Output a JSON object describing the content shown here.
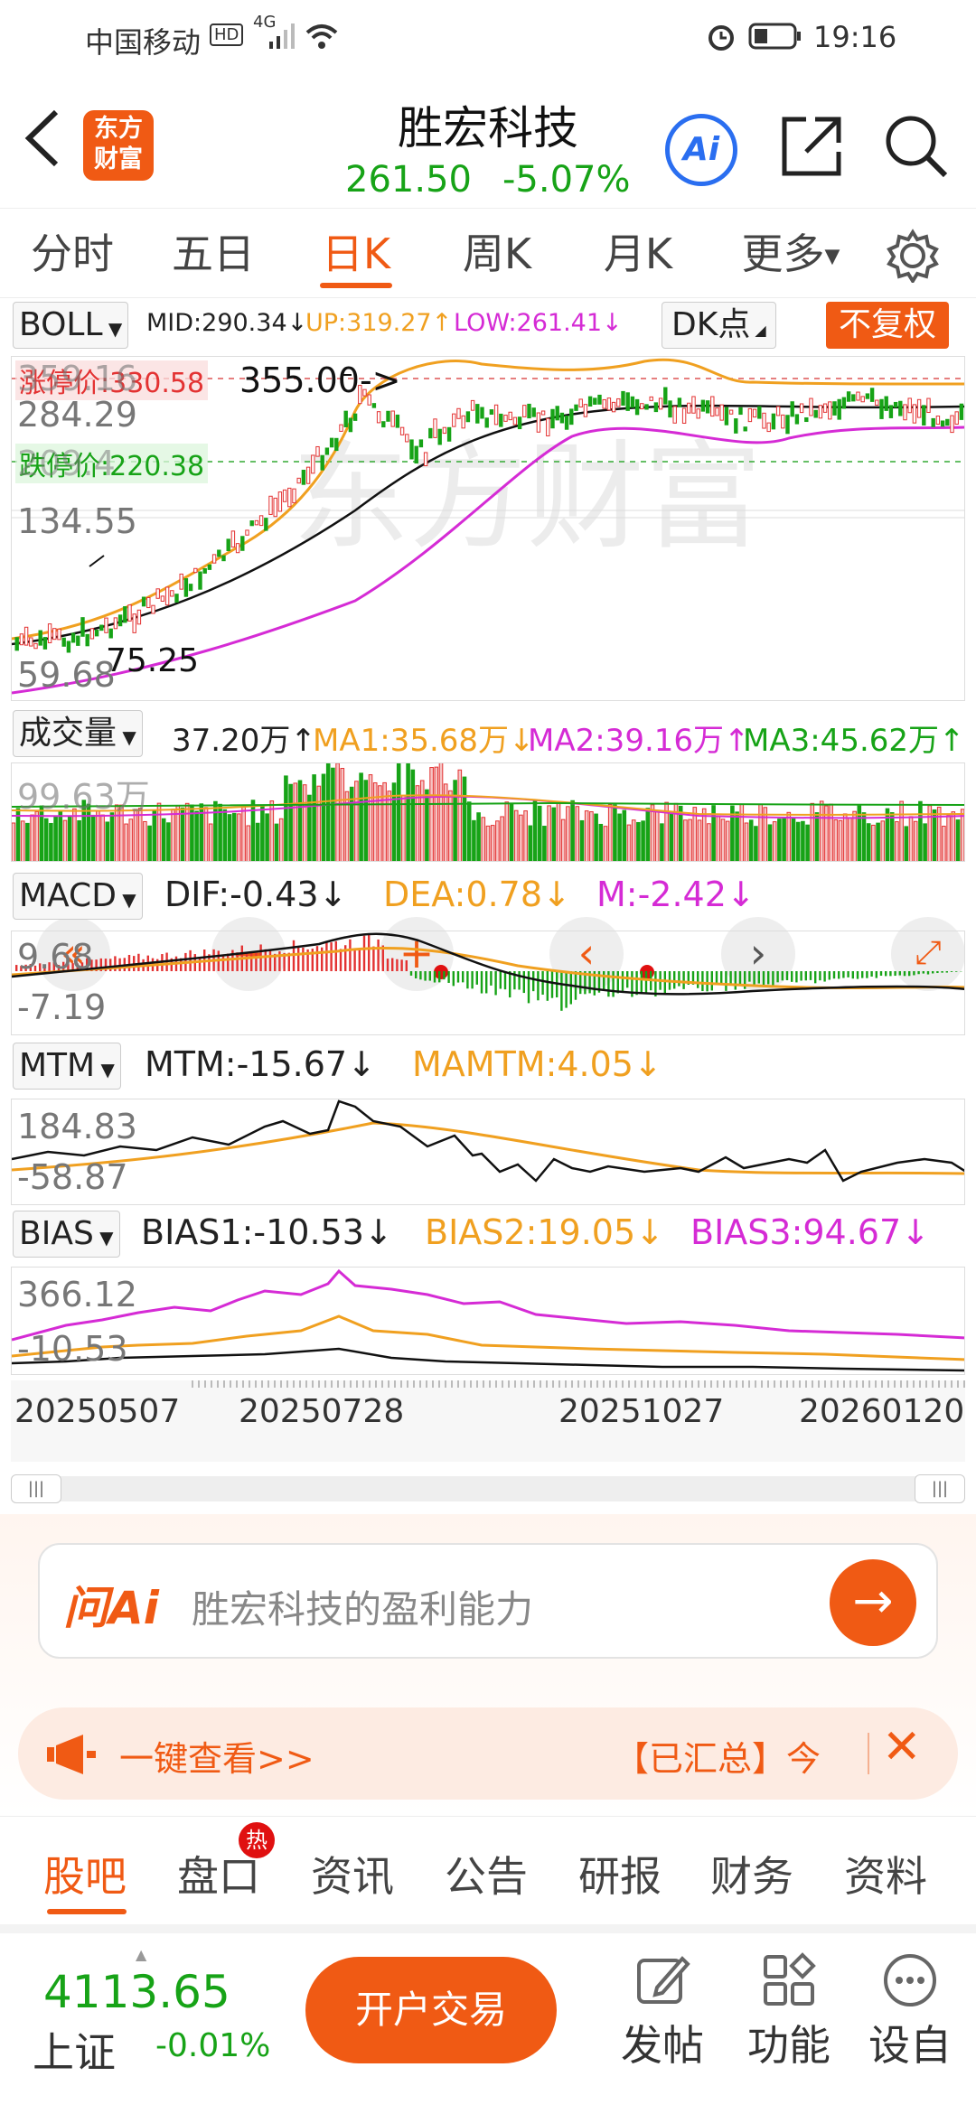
{
  "status_bar": {
    "carrier": "中国移动",
    "network": "4G",
    "time": "19:16"
  },
  "header": {
    "logo_text": "东方财富",
    "title": "胜宏科技",
    "price": "261.50",
    "change_pct": "-5.07%",
    "ai_label": "Ai"
  },
  "period_tabs": [
    {
      "label": "分时"
    },
    {
      "label": "五日"
    },
    {
      "label": "日K",
      "active": true
    },
    {
      "label": "周K"
    },
    {
      "label": "月K"
    },
    {
      "label": "更多"
    }
  ],
  "boll": {
    "selector": "BOLL",
    "mid": "MID:290.34",
    "up": "UP:319.27",
    "low": "LOW:261.41",
    "dk_label": "DK点",
    "fuquan_label": "不复权",
    "axis_labels": [
      "359.16",
      "284.29",
      "209.4",
      "134.55",
      "59.68"
    ],
    "limit_up": "涨停价:330.58",
    "limit_down": "跌停价:220.38",
    "peak_label": "355.00",
    "low_label": "75.25"
  },
  "volume": {
    "selector": "成交量",
    "value": "37.20万",
    "ma1": "MA1:35.68万",
    "ma2": "MA2:39.16万",
    "ma3": "MA3:45.62万",
    "axis_label": "99.63万"
  },
  "macd": {
    "selector": "MACD",
    "dif": "DIF:-0.43",
    "dea": "DEA:0.78",
    "m": "M:-2.42",
    "axis_top": "9.68",
    "axis_bottom": "-7.19"
  },
  "mtm": {
    "selector": "MTM",
    "mtm": "MTM:-15.67",
    "mamtm": "MAMTM:4.05",
    "axis_top": "184.83",
    "axis_bottom": "-58.87"
  },
  "bias": {
    "selector": "BIAS",
    "bias1": "BIAS1:-10.53",
    "bias2": "BIAS2:19.05",
    "bias3": "BIAS3:94.67",
    "axis_top": "366.12",
    "axis_bottom": "-10.53"
  },
  "dates": [
    "20250507",
    "20250728",
    "20251027",
    "20260120"
  ],
  "ask_ai": {
    "brand": "问Ai",
    "placeholder": "胜宏科技的盈利能力"
  },
  "banner": {
    "text": "一键查看>>",
    "tag": "【已汇总】今"
  },
  "bottom_tabs": [
    {
      "label": "股吧",
      "active": true
    },
    {
      "label": "盘口",
      "badge": "热"
    },
    {
      "label": "资讯"
    },
    {
      "label": "公告"
    },
    {
      "label": "研报"
    },
    {
      "label": "财务"
    },
    {
      "label": "资料"
    }
  ],
  "footer": {
    "index_value": "4113.65",
    "index_name": "上证",
    "index_change": "-0.01%",
    "trade_button": "开户交易",
    "actions": [
      {
        "label": "发帖"
      },
      {
        "label": "功能"
      },
      {
        "label": "设自"
      }
    ]
  },
  "colors": {
    "accent": "#f05a14",
    "up": "#e33232",
    "down": "#17a317",
    "mid_line": "#222222",
    "up_line": "#f0a020",
    "low_line": "#d52bd5"
  }
}
